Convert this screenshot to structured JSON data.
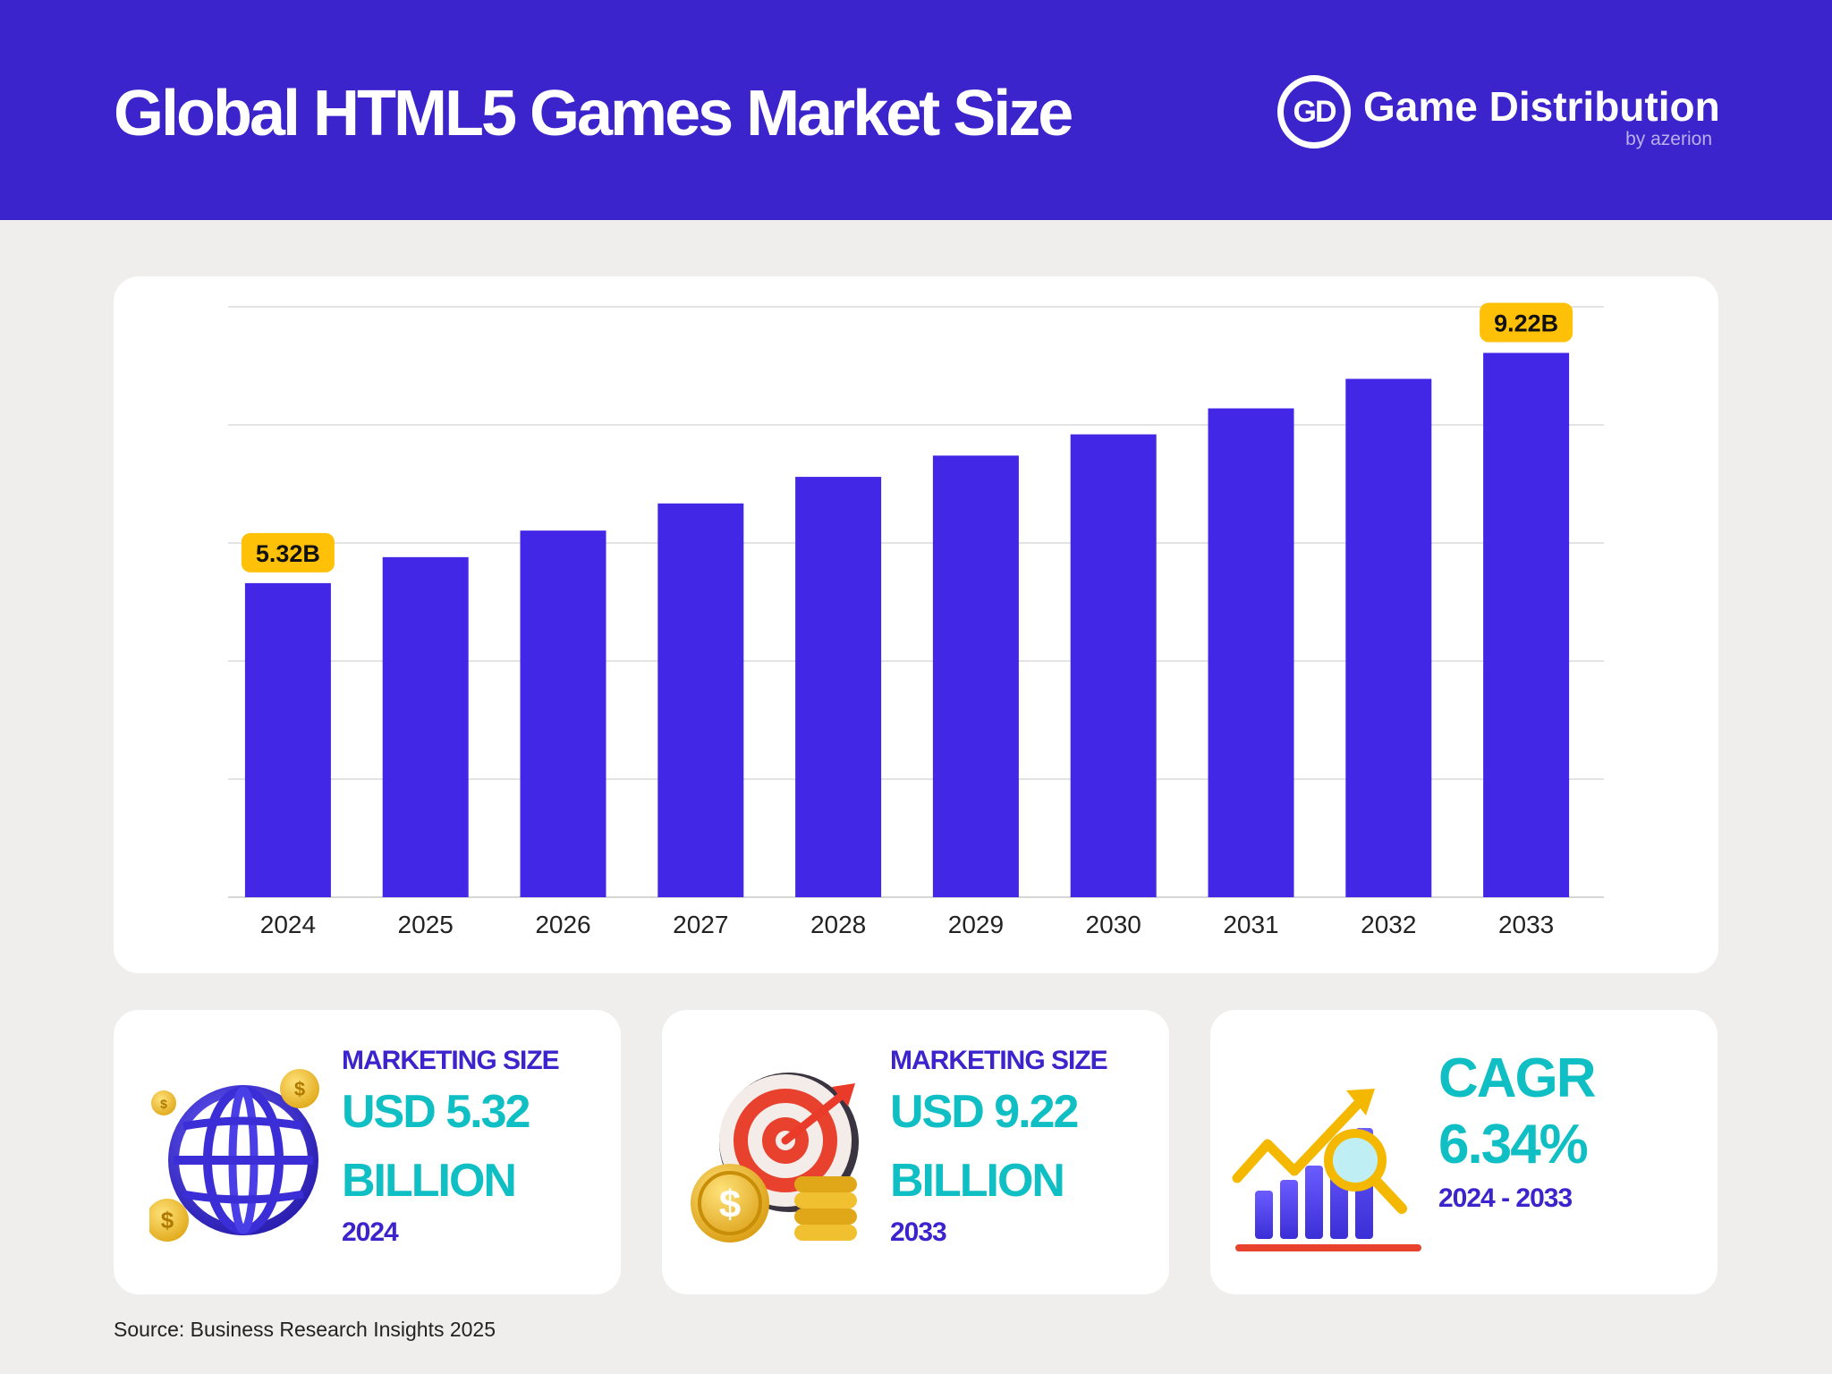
{
  "header": {
    "title": "Global HTML5 Games Market Size",
    "logo_mark": "GD",
    "logo_name": "Game Distribution",
    "logo_sub": "by azerion"
  },
  "colors": {
    "header_bg": "#3b24cc",
    "bar": "#4327e6",
    "accent_teal": "#10bfc4",
    "label_badge": "#ffc107"
  },
  "chart_data": {
    "type": "bar",
    "categories": [
      "2024",
      "2025",
      "2026",
      "2027",
      "2028",
      "2029",
      "2030",
      "2031",
      "2032",
      "2033"
    ],
    "values": [
      5.32,
      5.76,
      6.21,
      6.67,
      7.12,
      7.48,
      7.84,
      8.28,
      8.78,
      9.22
    ],
    "ylim": [
      0,
      10
    ],
    "grid": true,
    "data_labels": [
      {
        "index": 0,
        "text": "5.32B"
      },
      {
        "index": 9,
        "text": "9.22B"
      }
    ]
  },
  "stats": [
    {
      "label": "MARKETING SIZE",
      "value_line1": "USD 5.32",
      "value_line2": "BILLION",
      "period": "2024",
      "icon": "globe-coins-icon"
    },
    {
      "label": "MARKETING SIZE",
      "value_line1": "USD 9.22",
      "value_line2": "BILLION",
      "period": "2033",
      "icon": "target-coins-icon"
    },
    {
      "label": "CAGR",
      "value": "6.34%",
      "period": "2024 - 2033",
      "icon": "growth-chart-icon"
    }
  ],
  "source": "Source:  Business Research Insights 2025"
}
